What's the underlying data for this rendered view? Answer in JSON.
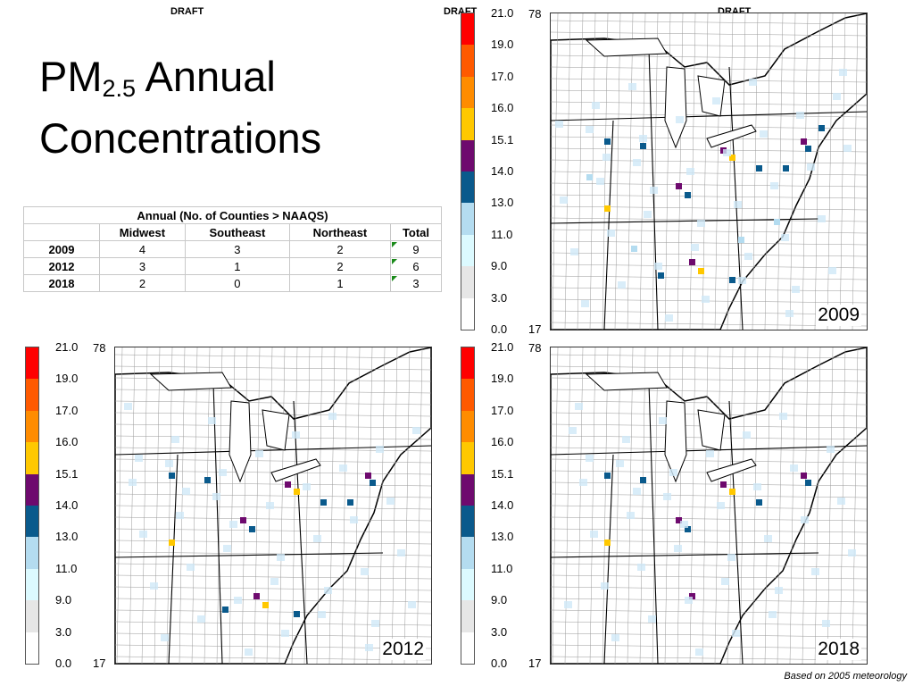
{
  "draft_labels": [
    "DRAFT",
    "DRAFT",
    "DRAFT"
  ],
  "title": {
    "main": "PM",
    "sub": "2.5",
    "rest": " Annual",
    "line2": "Concentrations"
  },
  "table": {
    "caption": "Annual (No. of Counties > NAAQS)",
    "columns": [
      "Midwest",
      "Southeast",
      "Northeast",
      "Total"
    ],
    "rows": [
      {
        "year": "2009",
        "values": [
          "4",
          "3",
          "2",
          "9"
        ]
      },
      {
        "year": "2012",
        "values": [
          "3",
          "1",
          "2",
          "6"
        ]
      },
      {
        "year": "2018",
        "values": [
          "2",
          "0",
          "1",
          "3"
        ]
      }
    ]
  },
  "colorbar": {
    "labels": [
      "21.0",
      "19.0",
      "17.0",
      "16.0",
      "15.1",
      "14.0",
      "13.0",
      "11.0",
      "9.0",
      "3.0",
      "0.0"
    ],
    "colors": [
      "#ff0000",
      "#ff5a00",
      "#ff8c00",
      "#ffc800",
      "#6e0a6e",
      "#0a5a8c",
      "#b4dcf0",
      "#dcfaff",
      "#e6e6e6",
      "#ffffff"
    ],
    "axis_top": "78",
    "axis_bottom": "17"
  },
  "maps": [
    {
      "year": "2009"
    },
    {
      "year": "2012"
    },
    {
      "year": "2018"
    }
  ],
  "footnote": "Based on 2005 meteorology"
}
